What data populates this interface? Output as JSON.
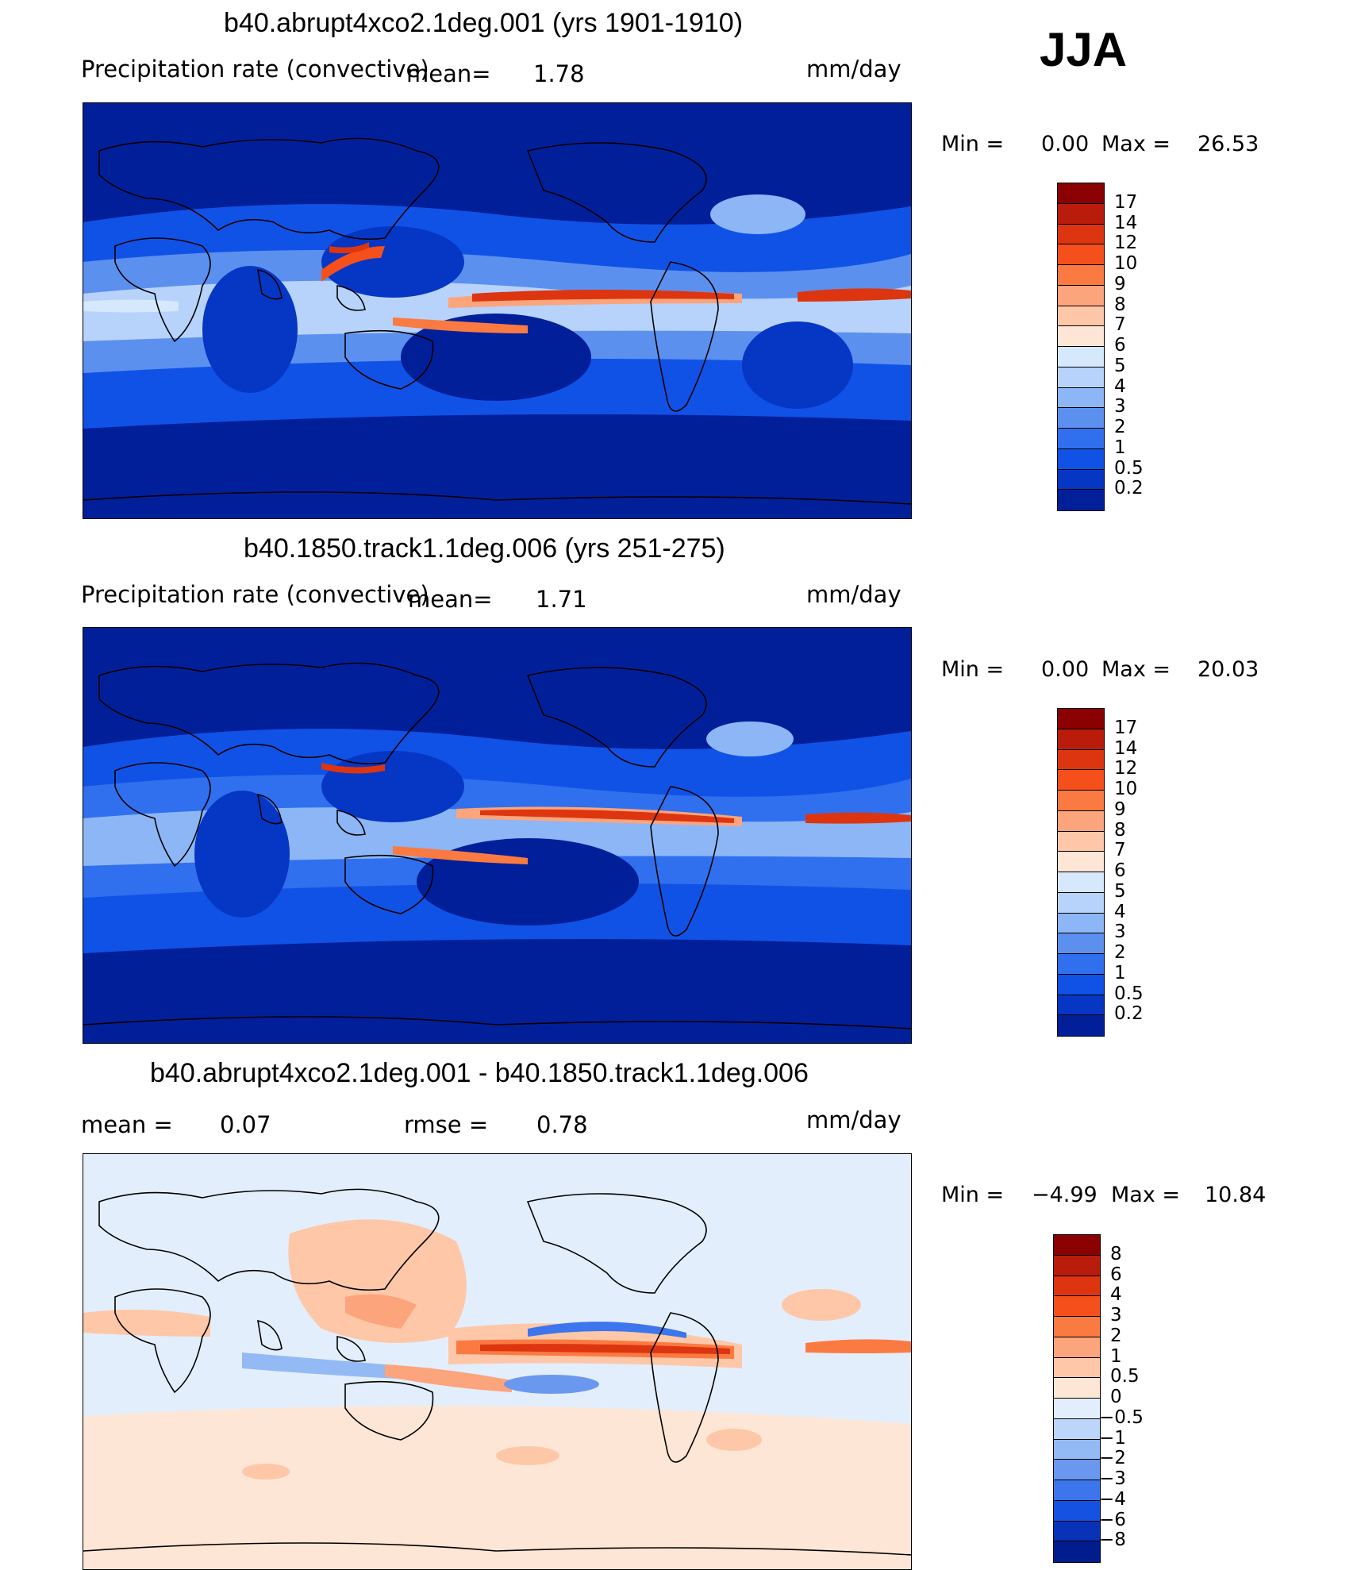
{
  "season": "JJA",
  "panels": [
    {
      "id": "p1",
      "title": "b40.abrupt4xco2.1deg.001 (yrs 1901-1910)",
      "variable": "Precipitation rate (convective)",
      "mean_label": "mean=",
      "mean_value": "1.78",
      "units": "mm/day",
      "min_label": "Min =",
      "min_value": "0.00",
      "max_label": "Max =",
      "max_value": "26.53",
      "levels": [
        "17",
        "14",
        "12",
        "10",
        "9",
        "8",
        "7",
        "6",
        "5",
        "4",
        "3",
        "2",
        "1",
        "0.5",
        "0.2"
      ],
      "colors": [
        "#8b0000",
        "#b91c0a",
        "#dd3510",
        "#f5501c",
        "#fb7a42",
        "#fca47b",
        "#fdc7a8",
        "#fde6d6",
        "#d6e8fb",
        "#b7d3fb",
        "#8cb6f6",
        "#5c90ef",
        "#3070ee",
        "#1152e6",
        "#0636c4",
        "#021f9a"
      ]
    },
    {
      "id": "p2",
      "title": "b40.1850.track1.1deg.006 (yrs 251-275)",
      "variable": "Precipitation rate (convective)",
      "mean_label": "mean=",
      "mean_value": "1.71",
      "units": "mm/day",
      "min_label": "Min =",
      "min_value": "0.00",
      "max_label": "Max =",
      "max_value": "20.03",
      "levels": [
        "17",
        "14",
        "12",
        "10",
        "9",
        "8",
        "7",
        "6",
        "5",
        "4",
        "3",
        "2",
        "1",
        "0.5",
        "0.2"
      ],
      "colors": [
        "#8b0000",
        "#b91c0a",
        "#dd3510",
        "#f5501c",
        "#fb7a42",
        "#fca47b",
        "#fdc7a8",
        "#fde6d6",
        "#d6e8fb",
        "#b7d3fb",
        "#8cb6f6",
        "#5c90ef",
        "#3070ee",
        "#1152e6",
        "#0636c4",
        "#021f9a"
      ]
    },
    {
      "id": "p3",
      "title": "b40.abrupt4xco2.1deg.001 - b40.1850.track1.1deg.006",
      "mean_label": "mean =",
      "mean_value": "0.07",
      "rmse_label": "rmse =",
      "rmse_value": "0.78",
      "units": "mm/day",
      "min_label": "Min =",
      "min_value": "−4.99",
      "max_label": "Max =",
      "max_value": "10.84",
      "levels": [
        "8",
        "6",
        "4",
        "3",
        "2",
        "1",
        "0.5",
        "0",
        "−0.5",
        "−1",
        "−2",
        "−3",
        "−4",
        "−6",
        "−8"
      ],
      "colors": [
        "#8b0000",
        "#b91c0a",
        "#dd3510",
        "#f5501c",
        "#fb7a42",
        "#fca47b",
        "#fdc7a8",
        "#fde6d6",
        "#e3eefc",
        "#bcd6fb",
        "#94baf5",
        "#6a98ef",
        "#3d75ec",
        "#1652e2",
        "#0833b8",
        "#011c8c"
      ]
    }
  ]
}
